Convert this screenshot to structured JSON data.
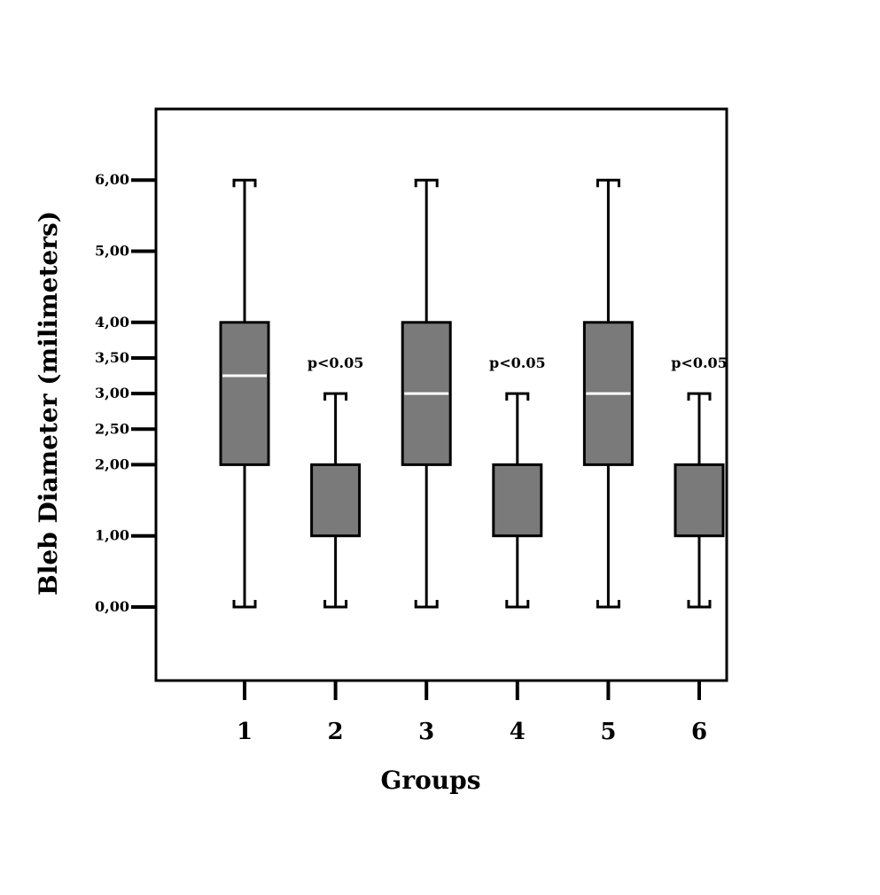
{
  "chart_data": {
    "type": "box",
    "xlabel": "Groups",
    "ylabel": "Bleb Diameter (milimeters)",
    "y_ticks": [
      {
        "value": 0,
        "label": "0,00"
      },
      {
        "value": 1,
        "label": "1,00"
      },
      {
        "value": 2,
        "label": "2,00"
      },
      {
        "value": 2.5,
        "label": "2,50"
      },
      {
        "value": 3,
        "label": "3,00"
      },
      {
        "value": 3.5,
        "label": "3,50"
      },
      {
        "value": 4,
        "label": "4,00"
      },
      {
        "value": 5,
        "label": "5,00"
      },
      {
        "value": 6,
        "label": "6,00"
      }
    ],
    "categories": [
      "1",
      "2",
      "3",
      "4",
      "5",
      "6"
    ],
    "boxes": [
      {
        "min": 0,
        "q1": 2,
        "median": 3.25,
        "q3": 4,
        "max": 6
      },
      {
        "min": 0,
        "q1": 1,
        "median": null,
        "q3": 2,
        "max": 3
      },
      {
        "min": 0,
        "q1": 2,
        "median": 3,
        "q3": 4,
        "max": 6
      },
      {
        "min": 0,
        "q1": 1,
        "median": null,
        "q3": 2,
        "max": 3
      },
      {
        "min": 0,
        "q1": 2,
        "median": 3,
        "q3": 4,
        "max": 6
      },
      {
        "min": 0,
        "q1": 1,
        "median": null,
        "q3": 2,
        "max": 3
      }
    ],
    "annotations": [
      {
        "group": "2",
        "text": "p<0.05",
        "y": 3.5
      },
      {
        "group": "4",
        "text": "p<0.05",
        "y": 3.5
      },
      {
        "group": "6",
        "text": "p<0.05",
        "y": 3.5
      }
    ],
    "colors": {
      "box": "#7a7a7a",
      "median": "#ffffff",
      "line": "#000000"
    },
    "grid": false,
    "legend": "none"
  }
}
